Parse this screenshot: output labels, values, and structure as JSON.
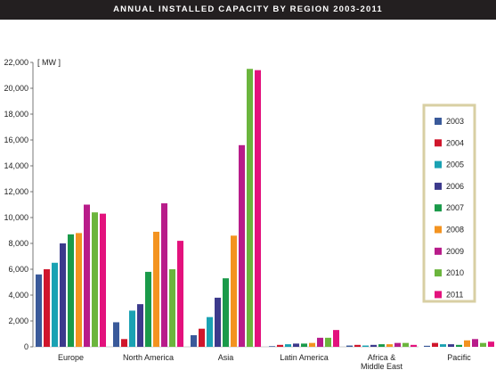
{
  "header": {
    "title": "ANNUAL INSTALLED CAPACITY BY REGION 2003-2011"
  },
  "chart_data": {
    "type": "bar",
    "title": "ANNUAL INSTALLED CAPACITY BY REGION 2003-2011",
    "unit_label": "[ MW ]",
    "categories": [
      "Europe",
      "North America",
      "Asia",
      "Latin America",
      "Africa & Middle East",
      "Pacific"
    ],
    "ylim": [
      0,
      22000
    ],
    "yticks": [
      "0",
      "2,000",
      "4,000",
      "6,000",
      "8,000",
      "10,000",
      "12,000",
      "14,000",
      "16,000",
      "18,000",
      "20,000",
      "22,000"
    ],
    "grid": false,
    "legend_position": "right",
    "series": [
      {
        "name": "2003",
        "color": "#3a5a9a",
        "values": [
          5600,
          1900,
          900,
          50,
          100,
          80
        ]
      },
      {
        "name": "2004",
        "color": "#d0162c",
        "values": [
          6000,
          600,
          1400,
          150,
          150,
          300
        ]
      },
      {
        "name": "2005",
        "color": "#1aa2b3",
        "values": [
          6500,
          2800,
          2300,
          200,
          100,
          200
        ]
      },
      {
        "name": "2006",
        "color": "#3c3a8c",
        "values": [
          8000,
          3300,
          3800,
          250,
          150,
          200
        ]
      },
      {
        "name": "2007",
        "color": "#1a9a4a",
        "values": [
          8700,
          5800,
          5300,
          250,
          200,
          150
        ]
      },
      {
        "name": "2008",
        "color": "#f39320",
        "values": [
          8800,
          8900,
          8600,
          300,
          200,
          500
        ]
      },
      {
        "name": "2009",
        "color": "#b81c8a",
        "values": [
          11000,
          11100,
          15600,
          700,
          300,
          600
        ]
      },
      {
        "name": "2010",
        "color": "#6bb53d",
        "values": [
          10400,
          6000,
          21500,
          700,
          300,
          300
        ]
      },
      {
        "name": "2011",
        "color": "#e3127d",
        "values": [
          10300,
          8200,
          21400,
          1300,
          150,
          400
        ]
      }
    ]
  }
}
